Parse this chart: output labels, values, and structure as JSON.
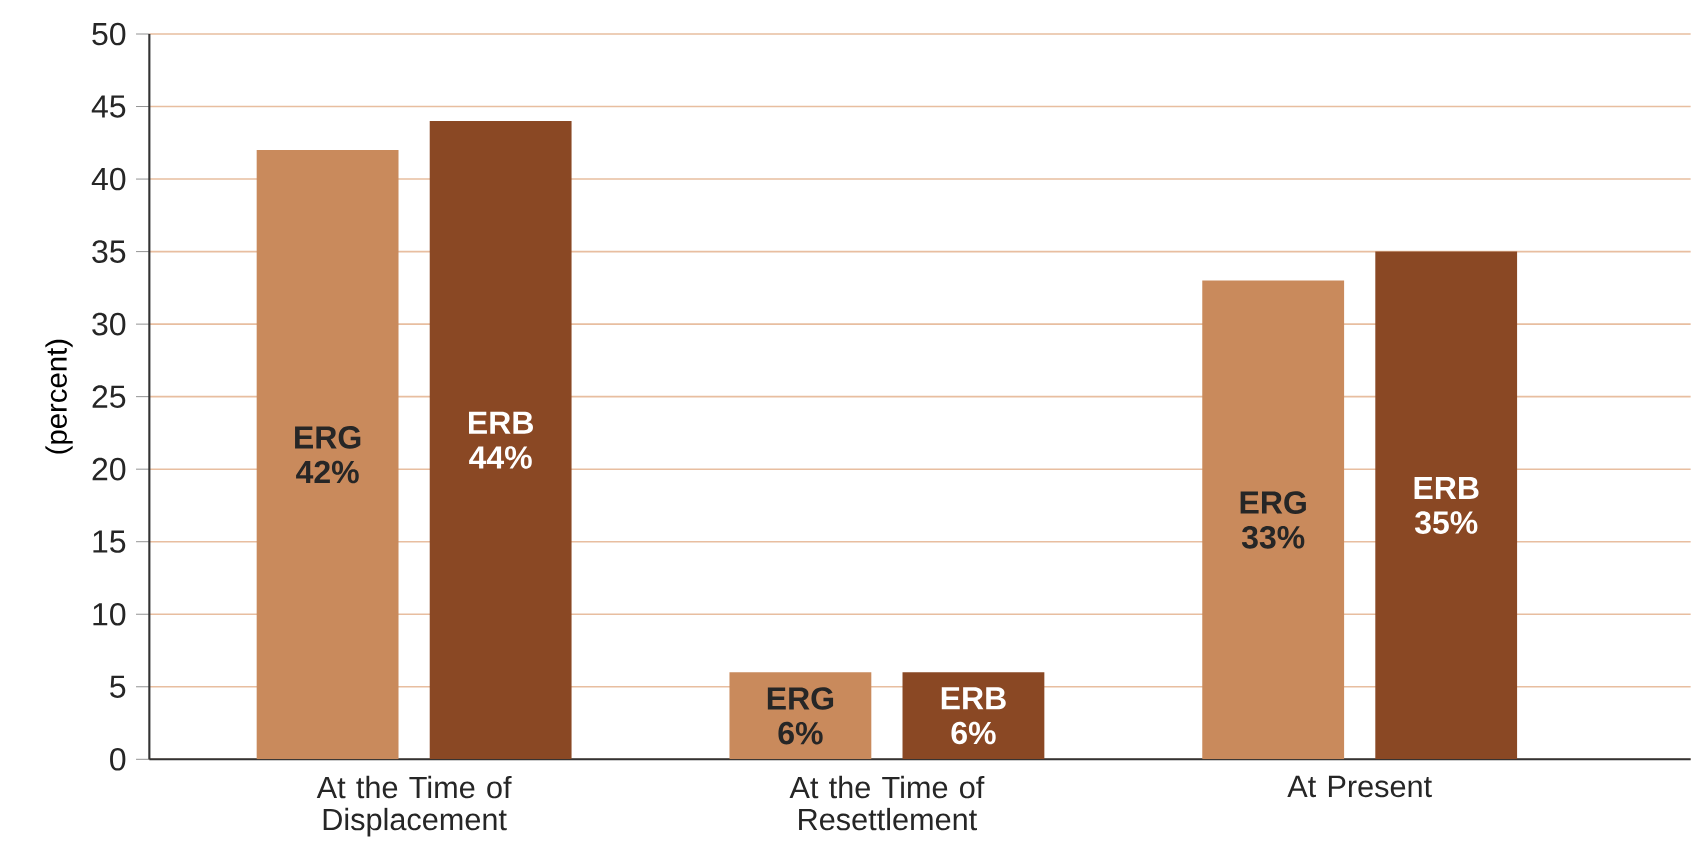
{
  "chart_data": {
    "type": "bar",
    "ylabel": "(percent)",
    "categories": [
      "At the Time of Displacement",
      "At the Time of Resettlement",
      "At Present"
    ],
    "series": [
      {
        "name": "ERG",
        "color": "#c98a5c",
        "values": [
          42,
          6,
          33
        ],
        "value_labels": [
          "42%",
          "6%",
          "33%"
        ]
      },
      {
        "name": "ERB",
        "color": "#8a4824",
        "values": [
          44,
          6,
          35
        ],
        "value_labels": [
          "44%",
          "6%",
          "35%"
        ]
      }
    ],
    "ylim": [
      0,
      50
    ],
    "yticks": [
      0,
      5,
      10,
      15,
      20,
      25,
      30,
      35,
      40,
      45,
      50
    ],
    "grid": "y"
  }
}
